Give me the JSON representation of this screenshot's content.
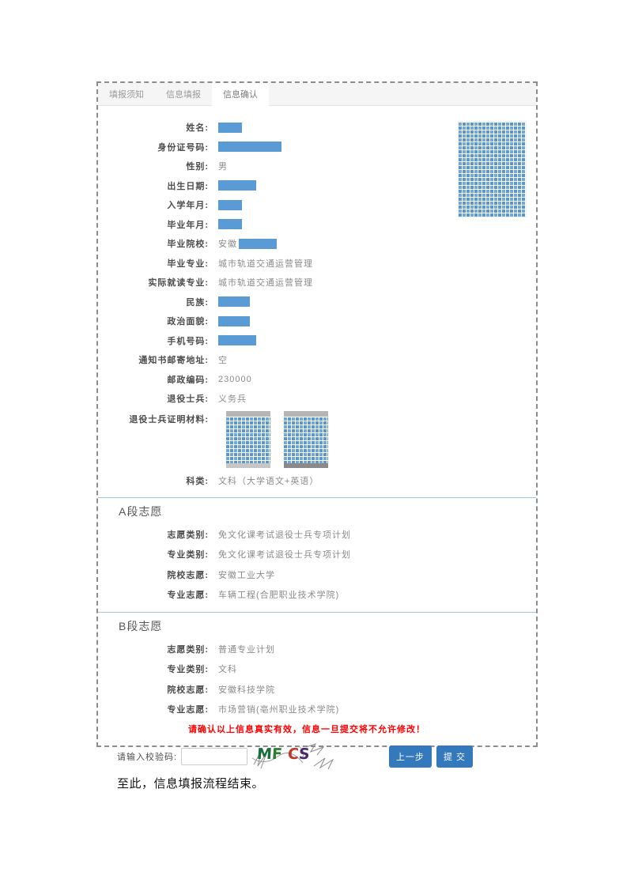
{
  "tabs": {
    "tab1": "填报须知",
    "tab2": "信息填报",
    "tab3": "信息确认"
  },
  "fields": {
    "name": {
      "label": "姓名:"
    },
    "id_number": {
      "label": "身份证号码:"
    },
    "gender": {
      "label": "性别:",
      "value": "男"
    },
    "birth_date": {
      "label": "出生日期:"
    },
    "enroll_date": {
      "label": "入学年月:"
    },
    "grad_date": {
      "label": "毕业年月:"
    },
    "grad_school": {
      "label": "毕业院校:",
      "value_prefix": "安徽"
    },
    "grad_major": {
      "label": "毕业专业:",
      "value": "城市轨道交通运营管理"
    },
    "actual_major": {
      "label": "实际就读专业:",
      "value": "城市轨道交通运营管理"
    },
    "ethnicity": {
      "label": "民族:"
    },
    "political_status": {
      "label": "政治面貌:"
    },
    "phone": {
      "label": "手机号码:"
    },
    "mail_address": {
      "label": "通知书邮寄地址:",
      "value": "空"
    },
    "postal_code": {
      "label": "邮政编码:",
      "value": "230000"
    },
    "veteran_type": {
      "label": "退役士兵:",
      "value": "义务兵"
    },
    "proof": {
      "label": "退役士兵证明材料:"
    },
    "subject": {
      "label": "科类:",
      "value": "文科（大学语文+英语）"
    }
  },
  "sections": {
    "a": {
      "title": "A段志愿",
      "rows": [
        {
          "label": "志愿类别:",
          "value": "免文化课考试退役士兵专项计划"
        },
        {
          "label": "专业类别:",
          "value": "免文化课考试退役士兵专项计划"
        },
        {
          "label": "院校志愿:",
          "value": "安徽工业大学"
        },
        {
          "label": "专业志愿:",
          "value": "车辆工程(合肥职业技术学院)"
        }
      ]
    },
    "b": {
      "title": "B段志愿",
      "rows": [
        {
          "label": "志愿类别:",
          "value": "普通专业计划"
        },
        {
          "label": "专业类别:",
          "value": "文科"
        },
        {
          "label": "院校志愿:",
          "value": "安徽科技学院"
        },
        {
          "label": "专业志愿:",
          "value": "市场营销(亳州职业技术学院)"
        }
      ]
    }
  },
  "warning": "请确认以上信息真实有效，信息一旦提交将不允许修改！",
  "footer": {
    "captcha_label": "请输入校验码:",
    "captcha_input_value": "",
    "captcha_letters": [
      {
        "char": "M",
        "color": "#1b6e3a"
      },
      {
        "char": "F",
        "color": "#2e7d32"
      },
      {
        "char": "C",
        "color": "#c0392b"
      },
      {
        "char": "S",
        "color": "#4a2a6b"
      }
    ],
    "prev_button": "上一步",
    "submit_button": "提 交"
  },
  "note": "至此，信息填报流程结束。",
  "colors": {
    "redaction_blue": "#5b9bd5",
    "mosaic_blue": "#6ea9d9",
    "divider_blue": "#9dc3e6",
    "button_blue": "#3579bd",
    "warning_red": "#ff0000"
  }
}
